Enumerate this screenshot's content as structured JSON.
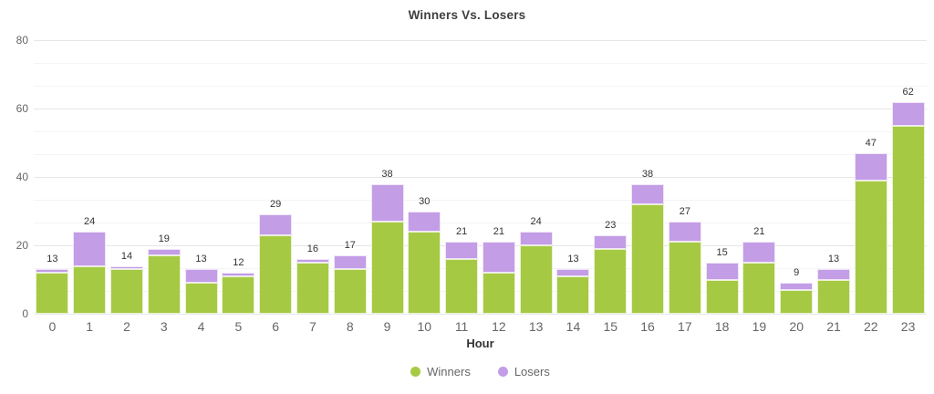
{
  "chart_data": {
    "type": "bar",
    "stacked": true,
    "title": "Winners Vs. Losers",
    "xlabel": "Hour",
    "ylabel": "",
    "categories": [
      "0",
      "1",
      "2",
      "3",
      "4",
      "5",
      "6",
      "7",
      "8",
      "9",
      "10",
      "11",
      "12",
      "13",
      "14",
      "15",
      "16",
      "17",
      "18",
      "19",
      "20",
      "21",
      "22",
      "23"
    ],
    "series": [
      {
        "name": "Winners",
        "color": "#a6c944",
        "values": [
          12,
          14,
          13,
          17,
          9,
          11,
          23,
          15,
          13,
          27,
          24,
          16,
          12,
          20,
          11,
          19,
          32,
          21,
          10,
          15,
          7,
          10,
          39,
          55
        ]
      },
      {
        "name": "Losers",
        "color": "#c39de6",
        "values": [
          1,
          10,
          1,
          2,
          4,
          1,
          6,
          1,
          4,
          11,
          6,
          5,
          9,
          4,
          2,
          4,
          6,
          6,
          5,
          6,
          2,
          3,
          8,
          7
        ]
      }
    ],
    "totals": [
      13,
      24,
      14,
      19,
      13,
      12,
      29,
      16,
      17,
      38,
      30,
      21,
      21,
      24,
      13,
      23,
      38,
      27,
      15,
      21,
      9,
      13,
      47,
      62
    ],
    "yticks": [
      0,
      20,
      40,
      60,
      80
    ],
    "ylim": [
      0,
      80
    ],
    "grid": true,
    "minor_grid": true,
    "legend_position": "bottom",
    "colors": {
      "title_text": "#3f3f3f",
      "axis_text": "#666666",
      "data_label_text": "#333333"
    }
  }
}
